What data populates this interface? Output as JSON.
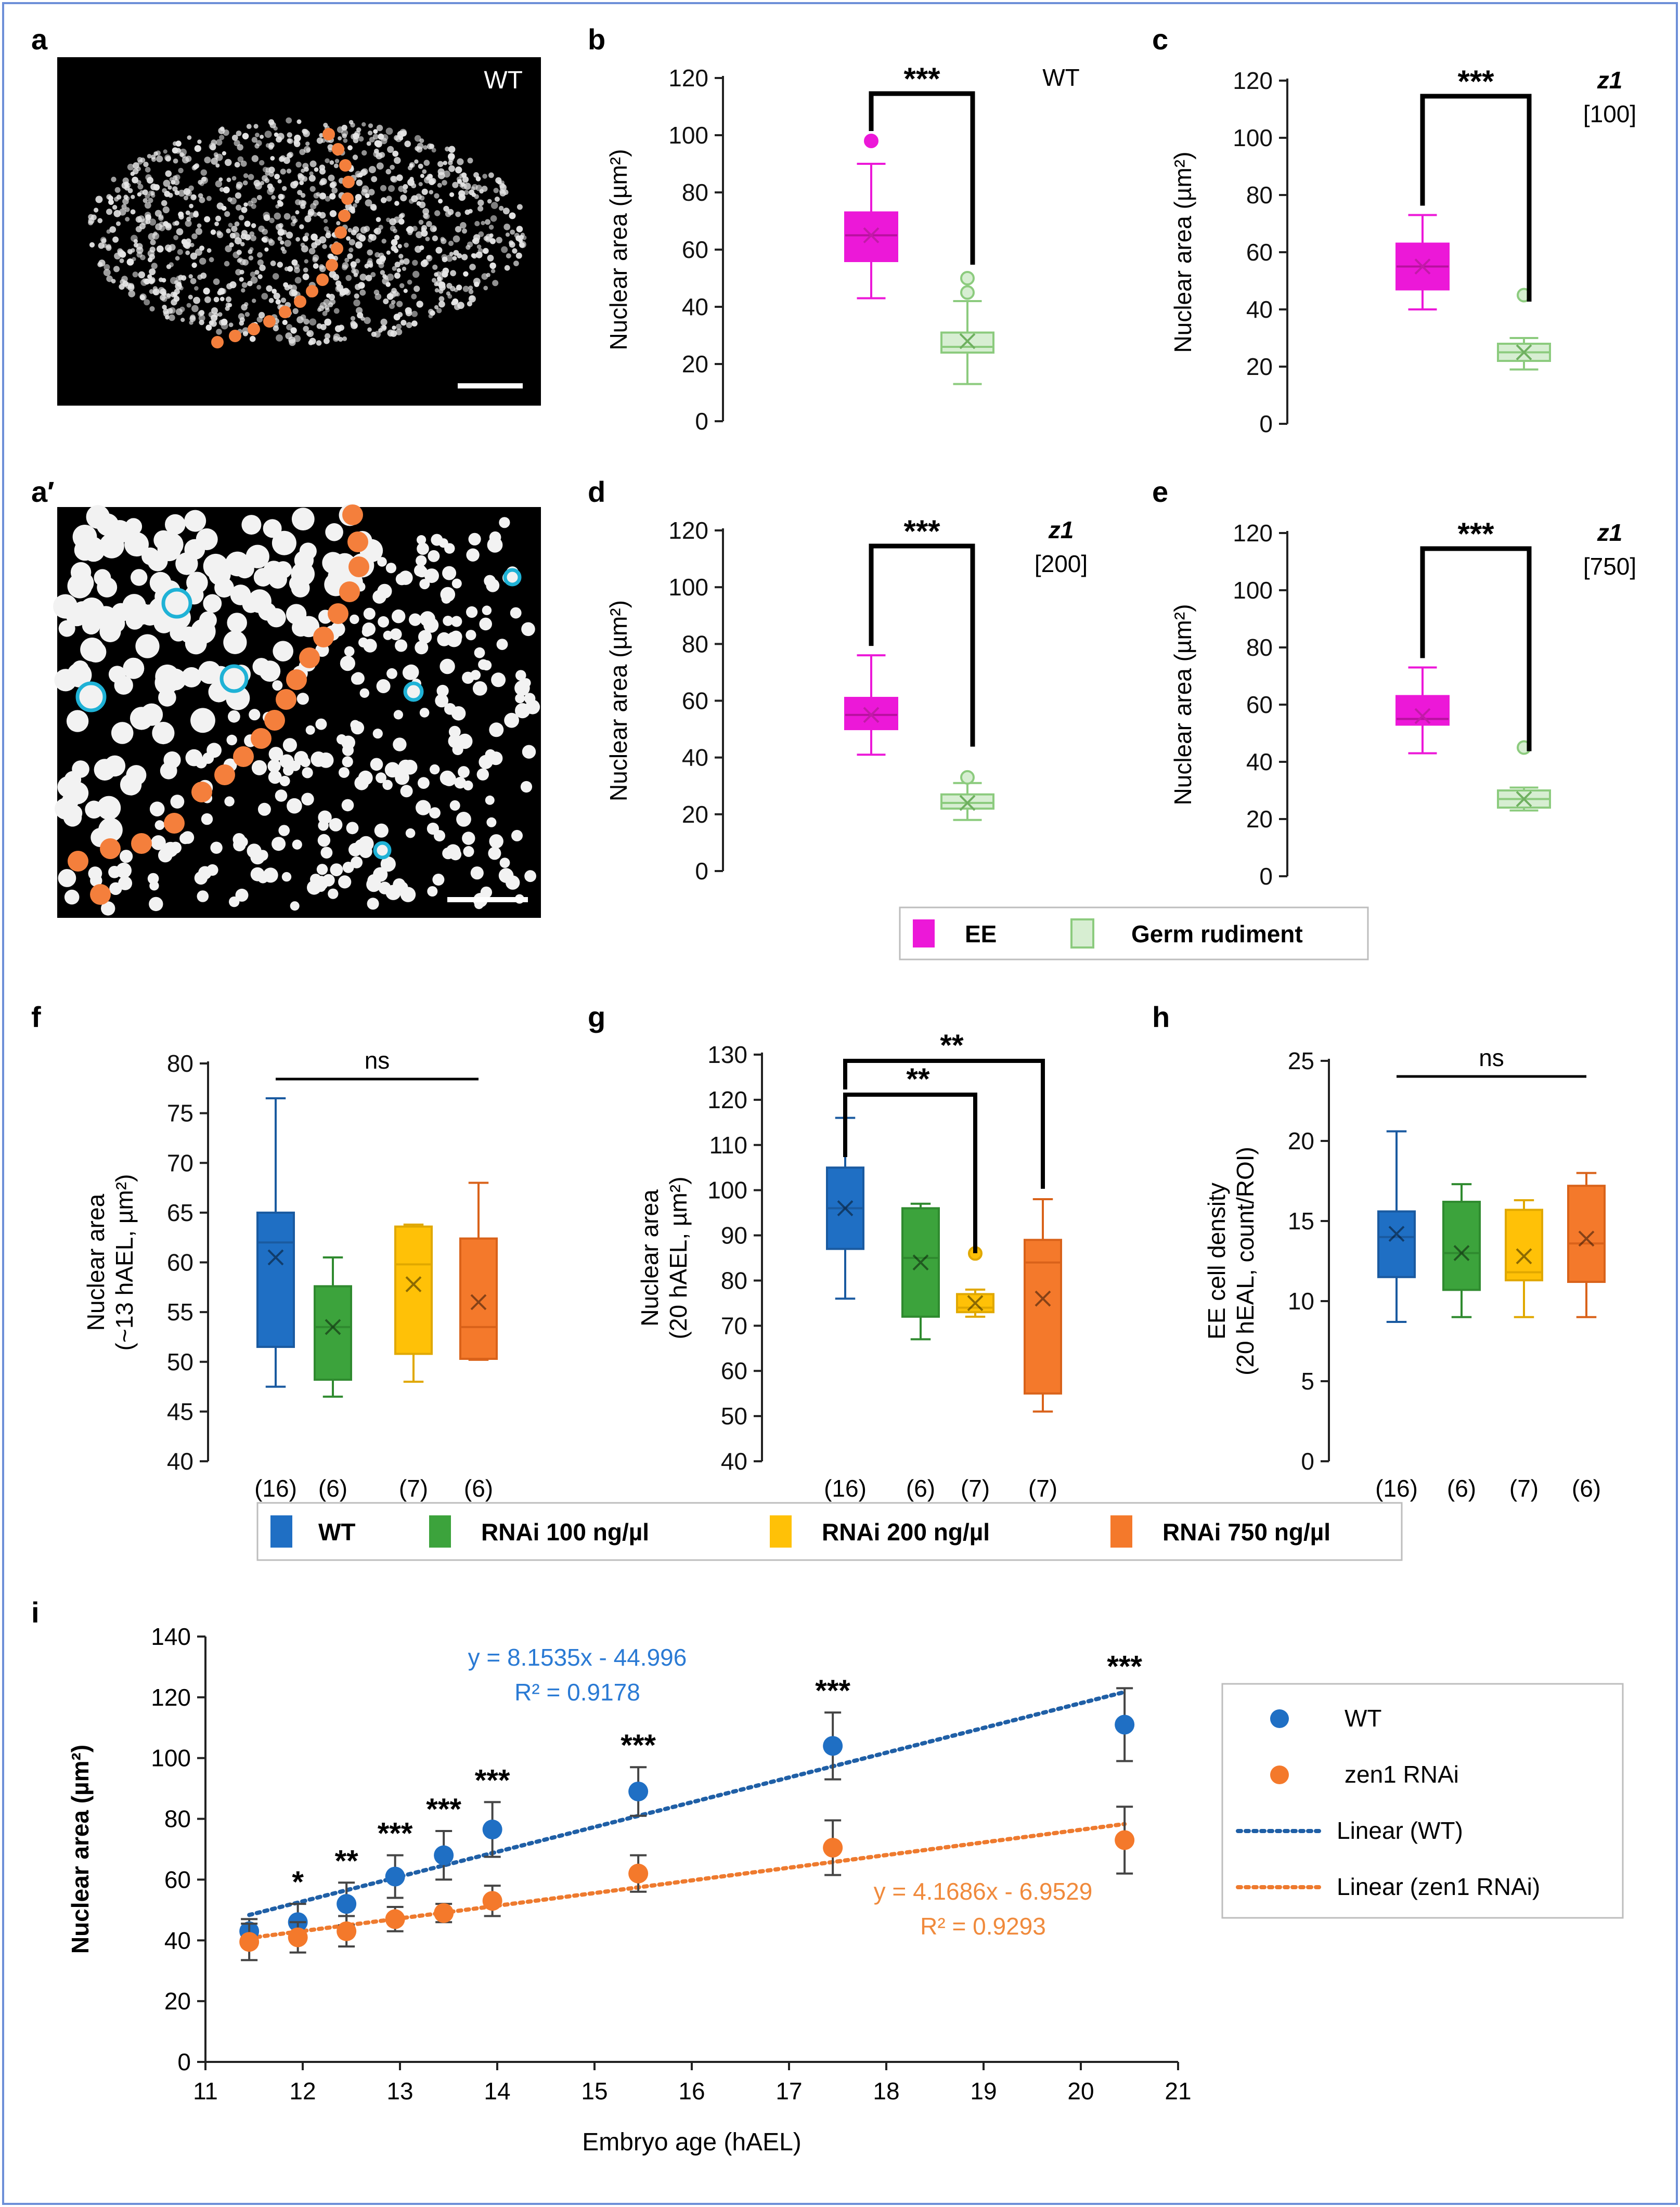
{
  "colors": {
    "ee": "#ec18d8",
    "germ": "#8ccb7e",
    "germ_fill": "#d7eed2",
    "wt": "#1f6fc4",
    "rnai100": "#3ca33c",
    "rnai200": "#ffc107",
    "rnai750": "#f4792b",
    "trend_wt": "#1f5fa6",
    "trend_zen": "#ee7a2e",
    "border": "#6d8fd8",
    "nuclei_mark": "#f47f3c",
    "cyan_ring": "#1fb2d6"
  },
  "panels": {
    "a": {
      "label": "a",
      "tag": "WT"
    },
    "a2": {
      "label": "a′"
    },
    "b": {
      "label": "b"
    },
    "c": {
      "label": "c"
    },
    "d": {
      "label": "d"
    },
    "e": {
      "label": "e"
    },
    "f": {
      "label": "f"
    },
    "g": {
      "label": "g"
    },
    "h": {
      "label": "h"
    },
    "i": {
      "label": "i"
    }
  },
  "legend_be": {
    "ee": "EE",
    "germ": "Germ rudiment"
  },
  "legend_fh": {
    "wt": "WT",
    "r100": "RNAi 100 ng/µl",
    "r200": "RNAi 200 ng/µl",
    "r750": "RNAi 750 ng/µl"
  },
  "chart_data": [
    {
      "id": "b",
      "type": "box",
      "title_tag": "WT",
      "title_italic": "",
      "sig": "***",
      "ylabel": "Nuclear area (µm²)",
      "ylim": [
        0,
        120
      ],
      "yticks": [
        0,
        20,
        40,
        60,
        80,
        100,
        120
      ],
      "groups": [
        {
          "name": "EE",
          "whisker_low": 43,
          "q1": 56,
          "median": 65,
          "q3": 73,
          "whisker_high": 90,
          "mean": 65,
          "outliers": [
            98
          ]
        },
        {
          "name": "Germ rudiment",
          "whisker_low": 13,
          "q1": 24,
          "median": 26,
          "q3": 31,
          "whisker_high": 42,
          "mean": 28,
          "outliers": [
            45,
            50
          ]
        }
      ]
    },
    {
      "id": "c",
      "type": "box",
      "title_tag": "[100]",
      "title_italic": "z1",
      "sig": "***",
      "ylabel": "Nuclear area (µm²)",
      "ylim": [
        0,
        120
      ],
      "yticks": [
        0,
        20,
        40,
        60,
        80,
        100,
        120
      ],
      "groups": [
        {
          "name": "EE",
          "whisker_low": 40,
          "q1": 47,
          "median": 55,
          "q3": 63,
          "whisker_high": 73,
          "mean": 55,
          "outliers": []
        },
        {
          "name": "Germ rudiment",
          "whisker_low": 19,
          "q1": 22,
          "median": 25,
          "q3": 28,
          "whisker_high": 30,
          "mean": 25,
          "outliers": [
            45
          ]
        }
      ]
    },
    {
      "id": "d",
      "type": "box",
      "title_tag": "[200]",
      "title_italic": "z1",
      "sig": "***",
      "ylabel": "Nuclear area (µm²)",
      "ylim": [
        0,
        120
      ],
      "yticks": [
        0,
        20,
        40,
        60,
        80,
        100,
        120
      ],
      "groups": [
        {
          "name": "EE",
          "whisker_low": 41,
          "q1": 50,
          "median": 55,
          "q3": 61,
          "whisker_high": 76,
          "mean": 55,
          "outliers": []
        },
        {
          "name": "Germ rudiment",
          "whisker_low": 18,
          "q1": 22,
          "median": 24,
          "q3": 27,
          "whisker_high": 31,
          "mean": 24,
          "outliers": [
            33
          ]
        }
      ]
    },
    {
      "id": "e",
      "type": "box",
      "title_tag": "[750]",
      "title_italic": "z1",
      "sig": "***",
      "ylabel": "Nuclear area (µm²)",
      "ylim": [
        0,
        120
      ],
      "yticks": [
        0,
        20,
        40,
        60,
        80,
        100,
        120
      ],
      "groups": [
        {
          "name": "EE",
          "whisker_low": 43,
          "q1": 53,
          "median": 55,
          "q3": 63,
          "whisker_high": 73,
          "mean": 56,
          "outliers": []
        },
        {
          "name": "Germ rudiment",
          "whisker_low": 23,
          "q1": 24,
          "median": 27,
          "q3": 30,
          "whisker_high": 31,
          "mean": 27,
          "outliers": [
            45
          ]
        }
      ]
    },
    {
      "id": "f",
      "type": "box",
      "ylabel": "Nuclear area",
      "ylabel2": "(~13 hAEL, µm²)",
      "ylim": [
        40,
        80
      ],
      "yticks": [
        40,
        45,
        50,
        55,
        60,
        65,
        70,
        75,
        80
      ],
      "ns": "ns",
      "ns_span": [
        0,
        3
      ],
      "sig_pairs": [],
      "groups": [
        {
          "name": "WT",
          "n": "(16)",
          "whisker_low": 47.5,
          "q1": 51.5,
          "median": 62,
          "q3": 65,
          "whisker_high": 76.5,
          "mean": 60.5,
          "outliers": []
        },
        {
          "name": "RNAi 100 ng/µl",
          "n": "(6)",
          "whisker_low": 46.5,
          "q1": 48.2,
          "median": 53.5,
          "q3": 57.6,
          "whisker_high": 60.5,
          "mean": 53.5,
          "outliers": []
        },
        {
          "name": "RNAi 200 ng/µl",
          "n": "(7)",
          "whisker_low": 48,
          "q1": 50.8,
          "median": 59.8,
          "q3": 63.6,
          "whisker_high": 63.8,
          "mean": 57.8,
          "outliers": []
        },
        {
          "name": "RNAi 750 ng/µl",
          "n": "(6)",
          "whisker_low": 50.2,
          "q1": 50.3,
          "median": 53.5,
          "q3": 62.4,
          "whisker_high": 68,
          "mean": 56,
          "outliers": []
        }
      ]
    },
    {
      "id": "g",
      "type": "box",
      "ylabel": "Nuclear area",
      "ylabel2": "(20 hAEL, µm²)",
      "ylim": [
        40,
        130
      ],
      "yticks": [
        40,
        50,
        60,
        70,
        80,
        90,
        100,
        110,
        120,
        130
      ],
      "ns": "",
      "sig_pairs": [
        {
          "from": 0,
          "to": 2,
          "label": "**"
        },
        {
          "from": 0,
          "to": 3,
          "label": "**"
        }
      ],
      "groups": [
        {
          "name": "WT",
          "n": "(16)",
          "whisker_low": 76,
          "q1": 87,
          "median": 96,
          "q3": 105,
          "whisker_high": 116,
          "mean": 96,
          "outliers": []
        },
        {
          "name": "RNAi 100 ng/µl",
          "n": "(6)",
          "whisker_low": 67,
          "q1": 72,
          "median": 85,
          "q3": 96,
          "whisker_high": 97,
          "mean": 84,
          "outliers": []
        },
        {
          "name": "RNAi 200 ng/µl",
          "n": "(7)",
          "whisker_low": 72,
          "q1": 73,
          "median": 74,
          "q3": 77,
          "whisker_high": 78,
          "mean": 75,
          "outliers": [
            86
          ]
        },
        {
          "name": "RNAi 750 ng/µl",
          "n": "(7)",
          "whisker_low": 51,
          "q1": 55,
          "median": 84,
          "q3": 89,
          "whisker_high": 98,
          "mean": 76,
          "outliers": []
        }
      ]
    },
    {
      "id": "h",
      "type": "box",
      "ylabel": "EE cell density",
      "ylabel2": "(20 hEAL, count/ROI)",
      "ylim": [
        0,
        25
      ],
      "yticks": [
        0,
        5,
        10,
        15,
        20,
        25
      ],
      "ns": "ns",
      "ns_span": [
        0,
        3
      ],
      "sig_pairs": [],
      "groups": [
        {
          "name": "WT",
          "n": "(16)",
          "whisker_low": 8.7,
          "q1": 11.5,
          "median": 14,
          "q3": 15.6,
          "whisker_high": 20.6,
          "mean": 14.2,
          "outliers": []
        },
        {
          "name": "RNAi 100 ng/µl",
          "n": "(6)",
          "whisker_low": 9,
          "q1": 10.7,
          "median": 13,
          "q3": 16.2,
          "whisker_high": 17.3,
          "mean": 13,
          "outliers": []
        },
        {
          "name": "RNAi 200 ng/µl",
          "n": "(7)",
          "whisker_low": 9,
          "q1": 11.3,
          "median": 11.8,
          "q3": 15.7,
          "whisker_high": 16.3,
          "mean": 12.8,
          "outliers": []
        },
        {
          "name": "RNAi 750 ng/µl",
          "n": "(6)",
          "whisker_low": 9,
          "q1": 11.2,
          "median": 13.6,
          "q3": 17.2,
          "whisker_high": 18,
          "mean": 13.9,
          "outliers": []
        }
      ]
    },
    {
      "id": "i",
      "type": "scatter",
      "xlabel": "Embryo age (hAEL)",
      "ylabel": "Nuclear area (µm²)",
      "xlim": [
        11,
        21
      ],
      "xticks": [
        11,
        12,
        13,
        14,
        15,
        16,
        17,
        18,
        19,
        20,
        21
      ],
      "ylim": [
        0,
        140
      ],
      "yticks": [
        0,
        20,
        40,
        60,
        80,
        100,
        120,
        140
      ],
      "series": [
        {
          "name": "WT",
          "x": [
            11.45,
            11.95,
            12.45,
            12.95,
            13.45,
            13.95,
            15.45,
            17.45,
            20.45
          ],
          "y": [
            43,
            46,
            52,
            61,
            68,
            76.5,
            89,
            104,
            111
          ],
          "err": [
            4,
            6,
            7,
            7,
            8,
            9,
            8,
            11,
            12
          ]
        },
        {
          "name": "zen1 RNAi",
          "x": [
            11.45,
            11.95,
            12.45,
            12.95,
            13.45,
            13.95,
            15.45,
            17.45,
            20.45
          ],
          "y": [
            39.5,
            41,
            43,
            47,
            49,
            53,
            62,
            70.5,
            73
          ],
          "err": [
            6,
            5,
            5,
            4,
            3,
            5,
            6,
            9,
            11
          ]
        }
      ],
      "sig_labels": [
        "",
        "*",
        "**",
        "***",
        "***",
        "***",
        "***",
        "***",
        "***"
      ],
      "trend_wt": {
        "slope": 8.1535,
        "intercept": -44.996,
        "eq": "y = 8.1535x - 44.996",
        "r2": "R² = 0.9178"
      },
      "trend_zen": {
        "slope": 4.1686,
        "intercept": -6.9529,
        "eq": "y = 4.1686x - 6.9529",
        "r2": "R² = 0.9293"
      },
      "legend": [
        "WT",
        "zen1 RNAi",
        "Linear (WT)",
        "Linear (zen1 RNAi)"
      ]
    }
  ]
}
